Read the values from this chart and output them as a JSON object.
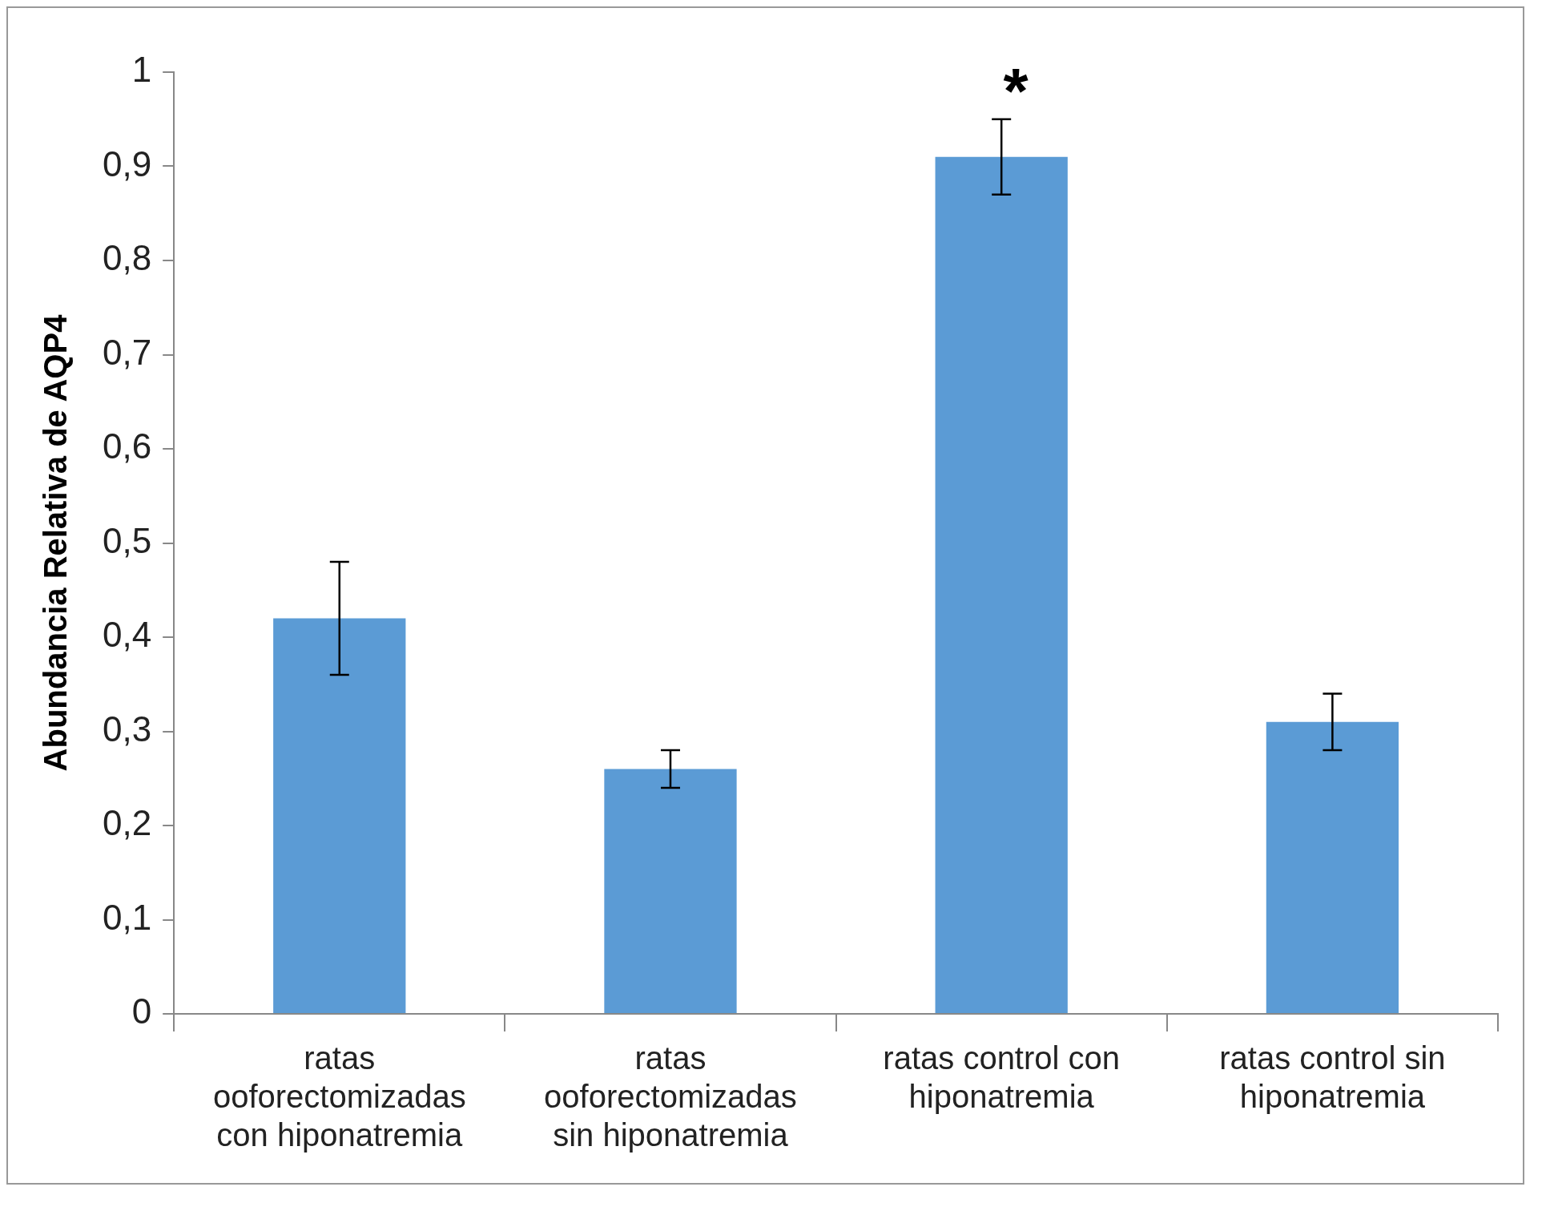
{
  "chart_data": {
    "type": "bar",
    "ylabel": "Abundancia Relativa de AQP4",
    "categories": [
      "ratas ooforectomizadas con hiponatremia",
      "ratas ooforectomizadas sin hiponatremia",
      "ratas control con hiponatremia",
      "ratas control sin hiponatremia"
    ],
    "values": [
      0.42,
      0.26,
      0.91,
      0.31
    ],
    "errors": [
      0.06,
      0.02,
      0.04,
      0.03
    ],
    "color": "#5b9bd5",
    "ylim": [
      0,
      1
    ],
    "yticks": [
      0,
      {
        "value": 0.1,
        "label": "0,1"
      },
      {
        "value": 0.2,
        "label": "0,2"
      },
      {
        "value": 0.3,
        "label": "0,3"
      },
      {
        "value": 0.4,
        "label": "0,4"
      },
      {
        "value": 0.5,
        "label": "0,5"
      },
      {
        "value": 0.6,
        "label": "0,6"
      },
      {
        "value": 0.7,
        "label": "0,7"
      },
      {
        "value": 0.8,
        "label": "0,8"
      },
      {
        "value": 0.9,
        "label": "0,9"
      },
      1
    ],
    "annotations": [
      "*"
    ],
    "grid": false,
    "legend": false
  }
}
